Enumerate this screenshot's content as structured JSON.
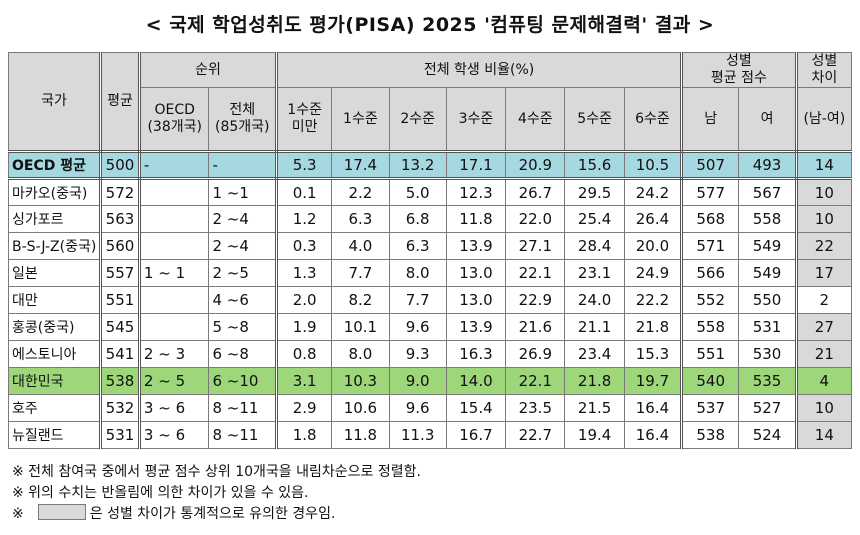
{
  "title": "< 국제 학업성취도 평가(PISA) 2025 '컴퓨팅 문제해결력' 결과 >",
  "headers": {
    "country": "국가",
    "average": "평균",
    "rank": "순위",
    "rank_oecd": "OECD\n(38개국)",
    "rank_all": "전체\n(85개국)",
    "distribution": "전체 학생 비율(%)",
    "levels": [
      "1수준\n미만",
      "1수준",
      "2수준",
      "3수준",
      "4수준",
      "5수준",
      "6수준"
    ],
    "gender_avg": "성별\n평균 점수",
    "male": "남",
    "female": "여",
    "gender_gap": "성별\n차이",
    "gap_sub": "(남-여)"
  },
  "rows": [
    {
      "country": "OECD 평균",
      "avg": "500",
      "oecd_rank": "-",
      "all_rank": "-",
      "levels": [
        "5.3",
        "17.4",
        "13.2",
        "17.1",
        "20.9",
        "15.6",
        "10.5"
      ],
      "male": "507",
      "female": "493",
      "gap": "14",
      "sig": false,
      "highlight": "oecd"
    },
    {
      "country": "마카오(중국)",
      "avg": "572",
      "oecd_rank": "",
      "all_rank": "1 ~1",
      "levels": [
        "0.1",
        "2.2",
        "5.0",
        "12.3",
        "26.7",
        "29.5",
        "24.2"
      ],
      "male": "577",
      "female": "567",
      "gap": "10",
      "sig": true,
      "highlight": ""
    },
    {
      "country": "싱가포르",
      "avg": "563",
      "oecd_rank": "",
      "all_rank": "2 ~4",
      "levels": [
        "1.2",
        "6.3",
        "6.8",
        "11.8",
        "22.0",
        "25.4",
        "26.4"
      ],
      "male": "568",
      "female": "558",
      "gap": "10",
      "sig": true,
      "highlight": ""
    },
    {
      "country": "B-S-J-Z(중국)",
      "avg": "560",
      "oecd_rank": "",
      "all_rank": "2 ~4",
      "levels": [
        "0.3",
        "4.0",
        "6.3",
        "13.9",
        "27.1",
        "28.4",
        "20.0"
      ],
      "male": "571",
      "female": "549",
      "gap": "22",
      "sig": true,
      "highlight": ""
    },
    {
      "country": "일본",
      "avg": "557",
      "oecd_rank": "1 ~ 1",
      "all_rank": "2 ~5",
      "levels": [
        "1.3",
        "7.7",
        "8.0",
        "13.0",
        "22.1",
        "23.1",
        "24.9"
      ],
      "male": "566",
      "female": "549",
      "gap": "17",
      "sig": true,
      "highlight": ""
    },
    {
      "country": "대만",
      "avg": "551",
      "oecd_rank": "",
      "all_rank": "4 ~6",
      "levels": [
        "2.0",
        "8.2",
        "7.7",
        "13.0",
        "22.9",
        "24.0",
        "22.2"
      ],
      "male": "552",
      "female": "550",
      "gap": "2",
      "sig": false,
      "highlight": ""
    },
    {
      "country": "홍콩(중국)",
      "avg": "545",
      "oecd_rank": "",
      "all_rank": "5 ~8",
      "levels": [
        "1.9",
        "10.1",
        "9.6",
        "13.9",
        "21.6",
        "21.1",
        "21.8"
      ],
      "male": "558",
      "female": "531",
      "gap": "27",
      "sig": true,
      "highlight": ""
    },
    {
      "country": "에스토니아",
      "avg": "541",
      "oecd_rank": "2 ~ 3",
      "all_rank": "6 ~8",
      "levels": [
        "0.8",
        "8.0",
        "9.3",
        "16.3",
        "26.9",
        "23.4",
        "15.3"
      ],
      "male": "551",
      "female": "530",
      "gap": "21",
      "sig": true,
      "highlight": ""
    },
    {
      "country": "대한민국",
      "avg": "538",
      "oecd_rank": "2 ~ 5",
      "all_rank": "6 ~10",
      "levels": [
        "3.1",
        "10.3",
        "9.0",
        "14.0",
        "22.1",
        "21.8",
        "19.7"
      ],
      "male": "540",
      "female": "535",
      "gap": "4",
      "sig": false,
      "highlight": "korea"
    },
    {
      "country": "호주",
      "avg": "532",
      "oecd_rank": "3 ~ 6",
      "all_rank": "8 ~11",
      "levels": [
        "2.9",
        "10.6",
        "9.6",
        "15.4",
        "23.5",
        "21.5",
        "16.4"
      ],
      "male": "537",
      "female": "527",
      "gap": "10",
      "sig": true,
      "highlight": ""
    },
    {
      "country": "뉴질랜드",
      "avg": "531",
      "oecd_rank": "3 ~ 6",
      "all_rank": "8 ~11",
      "levels": [
        "1.8",
        "11.8",
        "11.3",
        "16.7",
        "22.7",
        "19.4",
        "16.4"
      ],
      "male": "538",
      "female": "524",
      "gap": "14",
      "sig": true,
      "highlight": ""
    }
  ],
  "notes": {
    "note1": "※ 전체 참여국 중에서 평균 점수 상위 10개국을 내림차순으로 정렬함.",
    "note2": "※ 위의 수치는 반올림에 의한 차이가 있을 수 있음.",
    "note3_prefix": "※",
    "note3_text": "은 성별 차이가 통계적으로 유의한 경우임."
  },
  "colors": {
    "header_bg": "#d9d9d9",
    "oecd_row": "#a5d8e0",
    "korea_row": "#9ed67a",
    "significant_gap": "#d9d9d9"
  }
}
